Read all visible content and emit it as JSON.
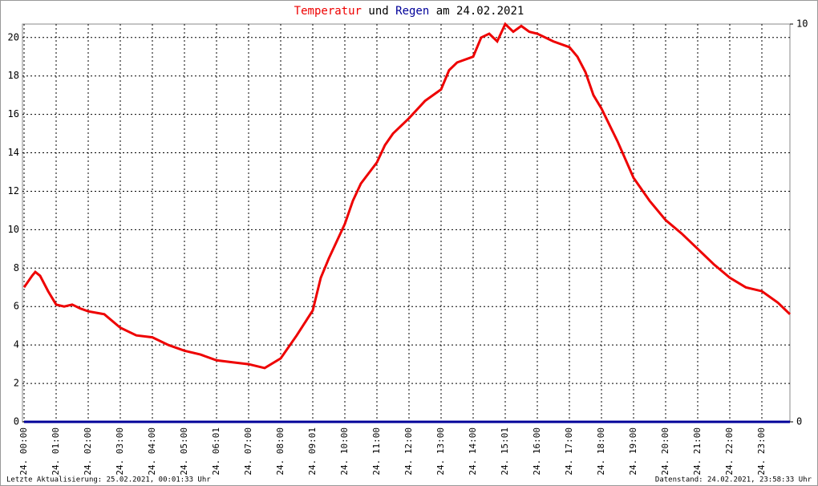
{
  "chart_data": {
    "type": "line",
    "title_join": "und",
    "title_date": "am 24.02.2021",
    "footer_left": "Letzte Aktualisierung: 25.02.2021, 00:01:33 Uhr",
    "footer_right": "Datenstand: 24.02.2021, 23:58:33 Uhr",
    "xlim": [
      0,
      24
    ],
    "ylim": [
      0,
      20.7
    ],
    "y2lim": [
      0,
      10
    ],
    "yticks": [
      0,
      2,
      4,
      6,
      8,
      10,
      12,
      14,
      16,
      18,
      20
    ],
    "y2ticks": [
      0,
      10
    ],
    "xticks": [
      {
        "value": 0,
        "label": "24. 00:00"
      },
      {
        "value": 1,
        "label": "24. 01:00"
      },
      {
        "value": 2,
        "label": "24. 02:00"
      },
      {
        "value": 3,
        "label": "24. 03:00"
      },
      {
        "value": 4,
        "label": "24. 04:00"
      },
      {
        "value": 5,
        "label": "24. 05:00"
      },
      {
        "value": 6,
        "label": "24. 06:01"
      },
      {
        "value": 7,
        "label": "24. 07:00"
      },
      {
        "value": 8,
        "label": "24. 08:00"
      },
      {
        "value": 9,
        "label": "24. 09:01"
      },
      {
        "value": 10,
        "label": "24. 10:00"
      },
      {
        "value": 11,
        "label": "24. 11:00"
      },
      {
        "value": 12,
        "label": "24. 12:00"
      },
      {
        "value": 13,
        "label": "24. 13:00"
      },
      {
        "value": 14,
        "label": "24. 14:00"
      },
      {
        "value": 15,
        "label": "24. 15:01"
      },
      {
        "value": 16,
        "label": "24. 16:00"
      },
      {
        "value": 17,
        "label": "24. 17:00"
      },
      {
        "value": 18,
        "label": "24. 18:00"
      },
      {
        "value": 19,
        "label": "24. 19:00"
      },
      {
        "value": 20,
        "label": "24. 20:00"
      },
      {
        "value": 21,
        "label": "24. 21:00"
      },
      {
        "value": 22,
        "label": "24. 22:00"
      },
      {
        "value": 23,
        "label": "24. 23:00"
      }
    ],
    "grid": true,
    "series": [
      {
        "name": "Temperatur",
        "color": "#ee0000",
        "x": [
          0,
          0.25,
          0.35,
          0.5,
          0.75,
          1,
          1.25,
          1.5,
          1.75,
          2,
          2.5,
          3,
          3.5,
          4,
          4.5,
          5,
          5.5,
          6,
          6.5,
          7,
          7.5,
          8,
          8.5,
          9,
          9.25,
          9.5,
          10,
          10.25,
          10.5,
          11,
          11.25,
          11.5,
          12,
          12.5,
          13,
          13.25,
          13.5,
          14,
          14.25,
          14.5,
          14.75,
          15,
          15.25,
          15.5,
          15.75,
          16,
          16.5,
          17,
          17.25,
          17.5,
          17.75,
          18,
          18.5,
          19,
          19.5,
          20,
          20.5,
          21,
          21.5,
          22,
          22.5,
          23,
          23.5,
          23.875
        ],
        "values": [
          7.0,
          7.6,
          7.8,
          7.6,
          6.8,
          6.1,
          6.0,
          6.1,
          5.9,
          5.75,
          5.6,
          4.9,
          4.5,
          4.4,
          4.0,
          3.7,
          3.5,
          3.2,
          3.1,
          3.0,
          2.8,
          3.3,
          4.5,
          5.8,
          7.5,
          8.5,
          10.3,
          11.5,
          12.4,
          13.5,
          14.4,
          15.0,
          15.8,
          16.7,
          17.3,
          18.3,
          18.7,
          19.0,
          20.0,
          20.2,
          19.8,
          20.7,
          20.3,
          20.6,
          20.3,
          20.2,
          19.8,
          19.5,
          19.0,
          18.2,
          17.0,
          16.3,
          14.6,
          12.7,
          11.5,
          10.5,
          9.8,
          9.0,
          8.2,
          7.5,
          7.0,
          6.8,
          6.2,
          5.6
        ]
      },
      {
        "name": "Regen",
        "color": "#000099",
        "axis": "y2",
        "x": [
          0,
          23.875
        ],
        "values": [
          0,
          0
        ]
      }
    ]
  }
}
